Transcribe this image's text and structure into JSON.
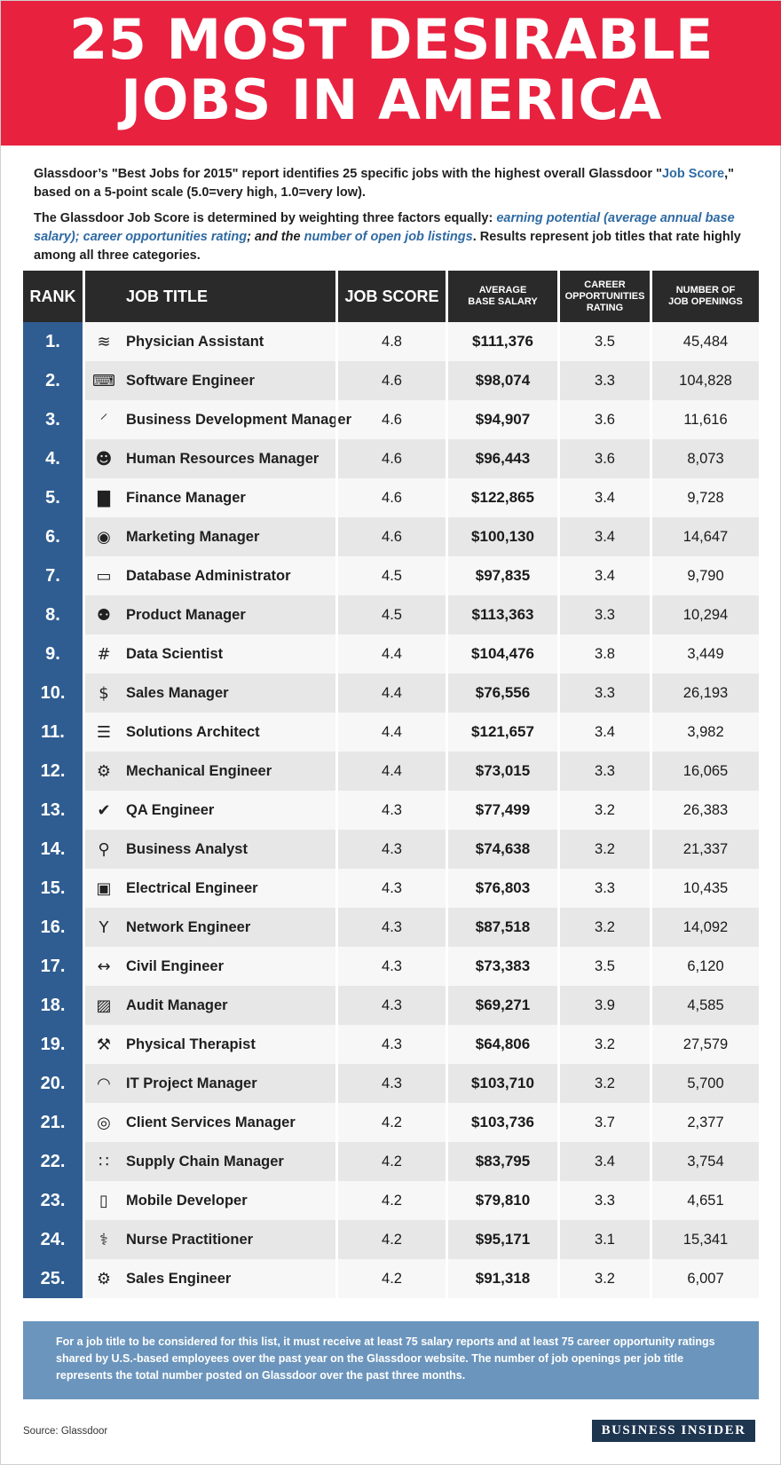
{
  "title_line1": "25 MOST DESIRABLE",
  "title_line2": "JOBS IN AMERICA",
  "intro": {
    "p1_a": "Glassdoor’s \"Best Jobs for 2015\" report identifies 25 specific jobs with the highest overall Glassdoor \"",
    "p1_link": "Job Score",
    "p1_b": ",\" based on a 5-point scale (5.0=very high, 1.0=very low).",
    "p2_a": "The Glassdoor Job Score is determined by weighting three factors equally: ",
    "p2_link1": "earning potential (average annual base salary)",
    "p2_sep1": "; ",
    "p2_link2": "career opportunities rating",
    "p2_sep2": "; and the ",
    "p2_link3": "number of open job listings",
    "p2_b": ". Results represent job titles that rate highly among all three categories."
  },
  "headers": {
    "rank": "RANK",
    "title": "JOB TITLE",
    "score": "JOB SCORE",
    "salary_l1": "AVERAGE",
    "salary_l2": "BASE SALARY",
    "career_l1": "CAREER",
    "career_l2": "OPPORTUNITIES",
    "career_l3": "RATING",
    "openings_l1": "NUMBER OF",
    "openings_l2": "JOB OPENINGS"
  },
  "chart_data": {
    "type": "table",
    "columns": [
      "RANK",
      "JOB TITLE",
      "JOB SCORE",
      "AVERAGE BASE SALARY",
      "CAREER OPPORTUNITIES RATING",
      "NUMBER OF JOB OPENINGS"
    ],
    "rows": [
      {
        "rank": "1.",
        "title": "Physician Assistant",
        "icon": "heartbeat-icon",
        "score": "4.8",
        "salary": "$111,376",
        "career": "3.5",
        "openings": "45,484"
      },
      {
        "rank": "2.",
        "title": "Software Engineer",
        "icon": "keyboard-icon",
        "score": "4.6",
        "salary": "$98,074",
        "career": "3.3",
        "openings": "104,828"
      },
      {
        "rank": "3.",
        "title": "Business Development Manager",
        "icon": "connection-icon",
        "score": "4.6",
        "salary": "$94,907",
        "career": "3.6",
        "openings": "11,616"
      },
      {
        "rank": "4.",
        "title": "Human Resources Manager",
        "icon": "person-icon",
        "score": "4.6",
        "salary": "$96,443",
        "career": "3.6",
        "openings": "8,073"
      },
      {
        "rank": "5.",
        "title": "Finance Manager",
        "icon": "bar-chart-icon",
        "score": "4.6",
        "salary": "$122,865",
        "career": "3.4",
        "openings": "9,728"
      },
      {
        "rank": "6.",
        "title": "Marketing Manager",
        "icon": "speech-bubble-icon",
        "score": "4.6",
        "salary": "$100,130",
        "career": "3.4",
        "openings": "14,647"
      },
      {
        "rank": "7.",
        "title": "Database Administrator",
        "icon": "laptop-icon",
        "score": "4.5",
        "salary": "$97,835",
        "career": "3.4",
        "openings": "9,790"
      },
      {
        "rank": "8.",
        "title": "Product Manager",
        "icon": "team-icon",
        "score": "4.5",
        "salary": "$113,363",
        "career": "3.3",
        "openings": "10,294"
      },
      {
        "rank": "9.",
        "title": "Data Scientist",
        "icon": "hash-icon",
        "score": "4.4",
        "salary": "$104,476",
        "career": "3.8",
        "openings": "3,449"
      },
      {
        "rank": "10.",
        "title": "Sales Manager",
        "icon": "dollar-icon",
        "score": "4.4",
        "salary": "$76,556",
        "career": "3.3",
        "openings": "26,193"
      },
      {
        "rank": "11.",
        "title": "Solutions Architect",
        "icon": "server-icon",
        "score": "4.4",
        "salary": "$121,657",
        "career": "3.4",
        "openings": "3,982"
      },
      {
        "rank": "12.",
        "title": "Mechanical Engineer",
        "icon": "gear-icon",
        "score": "4.4",
        "salary": "$73,015",
        "career": "3.3",
        "openings": "16,065"
      },
      {
        "rank": "13.",
        "title": "QA Engineer",
        "icon": "checkmark-icon",
        "score": "4.3",
        "salary": "$77,499",
        "career": "3.2",
        "openings": "26,383"
      },
      {
        "rank": "14.",
        "title": "Business Analyst",
        "icon": "magnifier-icon",
        "score": "4.3",
        "salary": "$74,638",
        "career": "3.2",
        "openings": "21,337"
      },
      {
        "rank": "15.",
        "title": "Electrical Engineer",
        "icon": "outlet-icon",
        "score": "4.3",
        "salary": "$76,803",
        "career": "3.3",
        "openings": "10,435"
      },
      {
        "rank": "16.",
        "title": "Network Engineer",
        "icon": "network-fork-icon",
        "score": "4.3",
        "salary": "$87,518",
        "career": "3.2",
        "openings": "14,092"
      },
      {
        "rank": "17.",
        "title": "Civil Engineer",
        "icon": "bridge-icon",
        "score": "4.3",
        "salary": "$73,383",
        "career": "3.5",
        "openings": "6,120"
      },
      {
        "rank": "18.",
        "title": "Audit Manager",
        "icon": "line-chart-icon",
        "score": "4.3",
        "salary": "$69,271",
        "career": "3.9",
        "openings": "4,585"
      },
      {
        "rank": "19.",
        "title": "Physical Therapist",
        "icon": "wrench-icon",
        "score": "4.3",
        "salary": "$64,806",
        "career": "3.2",
        "openings": "27,579"
      },
      {
        "rank": "20.",
        "title": "IT Project Manager",
        "icon": "wifi-icon",
        "score": "4.3",
        "salary": "$103,710",
        "career": "3.2",
        "openings": "5,700"
      },
      {
        "rank": "21.",
        "title": "Client Services Manager",
        "icon": "search-person-icon",
        "score": "4.2",
        "salary": "$103,736",
        "career": "3.7",
        "openings": "2,377"
      },
      {
        "rank": "22.",
        "title": "Supply Chain Manager",
        "icon": "grid-dots-icon",
        "score": "4.2",
        "salary": "$83,795",
        "career": "3.4",
        "openings": "3,754"
      },
      {
        "rank": "23.",
        "title": "Mobile Developer",
        "icon": "phone-icon",
        "score": "4.2",
        "salary": "$79,810",
        "career": "3.3",
        "openings": "4,651"
      },
      {
        "rank": "24.",
        "title": "Nurse Practitioner",
        "icon": "stethoscope-icon",
        "score": "4.2",
        "salary": "$95,171",
        "career": "3.1",
        "openings": "15,341"
      },
      {
        "rank": "25.",
        "title": "Sales Engineer",
        "icon": "cog-icon",
        "score": "4.2",
        "salary": "$91,318",
        "career": "3.2",
        "openings": "6,007"
      }
    ]
  },
  "note": "For a job title to be considered for this list, it must receive at least 75 salary reports and at least 75 career opportunity ratings shared by U.S.-based employees over the past year on the Glassdoor website. The number of job openings per job title represents the total number posted on Glassdoor over the past three months.",
  "source": "Source: Glassdoor",
  "brand": "BUSINESS INSIDER",
  "colors": {
    "banner": "#e8213f",
    "header": "#2a2a2a",
    "rank_column": "#2f5d91",
    "link_text": "#2f6aa3",
    "note_box": "#6b95bc",
    "brand_box": "#1e3550"
  }
}
